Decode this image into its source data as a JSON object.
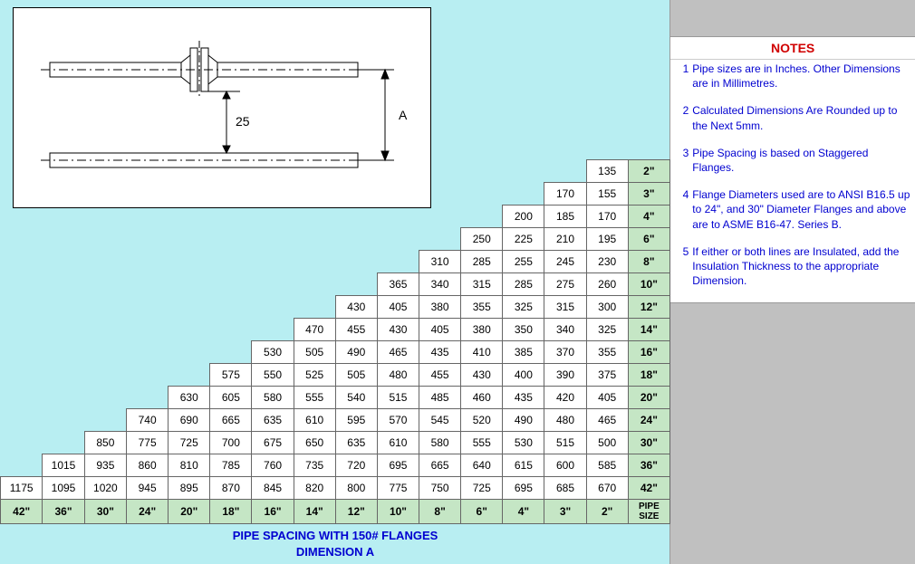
{
  "notes_header": "NOTES",
  "notes": [
    {
      "num": "1",
      "text": "Pipe sizes are in Inches. Other Dimensions are in Millimetres."
    },
    {
      "num": "2",
      "text": "Calculated Dimensions Are Rounded up to the Next 5mm."
    },
    {
      "num": "3",
      "text": "Pipe Spacing is based on Staggered Flanges."
    },
    {
      "num": "4",
      "text": "Flange Diameters used are to ANSI B16.5 up to 24\", and 30\" Diameter Flanges and above are to ASME B16-47. Series B."
    },
    {
      "num": "5",
      "text": "If either or both lines are Insulated, add the Insulation Thickness to the appropriate Dimension."
    }
  ],
  "diagram": {
    "gap_label": "25",
    "dimension_label": "A"
  },
  "table": {
    "caption_line1": "PIPE SPACING WITH 150# FLANGES",
    "caption_line2": "DIMENSION A",
    "pipe_size_label": "PIPE\nSIZE",
    "column_sizes": [
      "42\"",
      "36\"",
      "30\"",
      "24\"",
      "20\"",
      "18\"",
      "16\"",
      "14\"",
      "12\"",
      "10\"",
      "8\"",
      "6\"",
      "4\"",
      "3\"",
      "2\""
    ],
    "rows": [
      {
        "size": "2\"",
        "offset": 14,
        "values": [
          "135"
        ]
      },
      {
        "size": "3\"",
        "offset": 13,
        "values": [
          "170",
          "155"
        ]
      },
      {
        "size": "4\"",
        "offset": 12,
        "values": [
          "200",
          "185",
          "170"
        ]
      },
      {
        "size": "6\"",
        "offset": 11,
        "values": [
          "250",
          "225",
          "210",
          "195"
        ]
      },
      {
        "size": "8\"",
        "offset": 10,
        "values": [
          "310",
          "285",
          "255",
          "245",
          "230"
        ]
      },
      {
        "size": "10\"",
        "offset": 9,
        "values": [
          "365",
          "340",
          "315",
          "285",
          "275",
          "260"
        ]
      },
      {
        "size": "12\"",
        "offset": 8,
        "values": [
          "430",
          "405",
          "380",
          "355",
          "325",
          "315",
          "300"
        ]
      },
      {
        "size": "14\"",
        "offset": 7,
        "values": [
          "470",
          "455",
          "430",
          "405",
          "380",
          "350",
          "340",
          "325"
        ]
      },
      {
        "size": "16\"",
        "offset": 6,
        "values": [
          "530",
          "505",
          "490",
          "465",
          "435",
          "410",
          "385",
          "370",
          "355"
        ]
      },
      {
        "size": "18\"",
        "offset": 5,
        "values": [
          "575",
          "550",
          "525",
          "505",
          "480",
          "455",
          "430",
          "400",
          "390",
          "375"
        ]
      },
      {
        "size": "20\"",
        "offset": 4,
        "values": [
          "630",
          "605",
          "580",
          "555",
          "540",
          "515",
          "485",
          "460",
          "435",
          "420",
          "405"
        ]
      },
      {
        "size": "24\"",
        "offset": 3,
        "values": [
          "740",
          "690",
          "665",
          "635",
          "610",
          "595",
          "570",
          "545",
          "520",
          "490",
          "480",
          "465"
        ]
      },
      {
        "size": "30\"",
        "offset": 2,
        "values": [
          "850",
          "775",
          "725",
          "700",
          "675",
          "650",
          "635",
          "610",
          "580",
          "555",
          "530",
          "515",
          "500"
        ]
      },
      {
        "size": "36\"",
        "offset": 1,
        "values": [
          "1015",
          "935",
          "860",
          "810",
          "785",
          "760",
          "735",
          "720",
          "695",
          "665",
          "640",
          "615",
          "600",
          "585"
        ]
      },
      {
        "size": "42\"",
        "offset": 0,
        "values": [
          "1175",
          "1095",
          "1020",
          "945",
          "895",
          "870",
          "845",
          "820",
          "800",
          "775",
          "750",
          "725",
          "695",
          "685",
          "670"
        ]
      }
    ]
  },
  "colors": {
    "left_bg": "#b8eef2",
    "size_bg": "#c5e6c5",
    "note_text": "#0000d0",
    "header_text": "#d00000",
    "gray": "#c0c0c0"
  }
}
